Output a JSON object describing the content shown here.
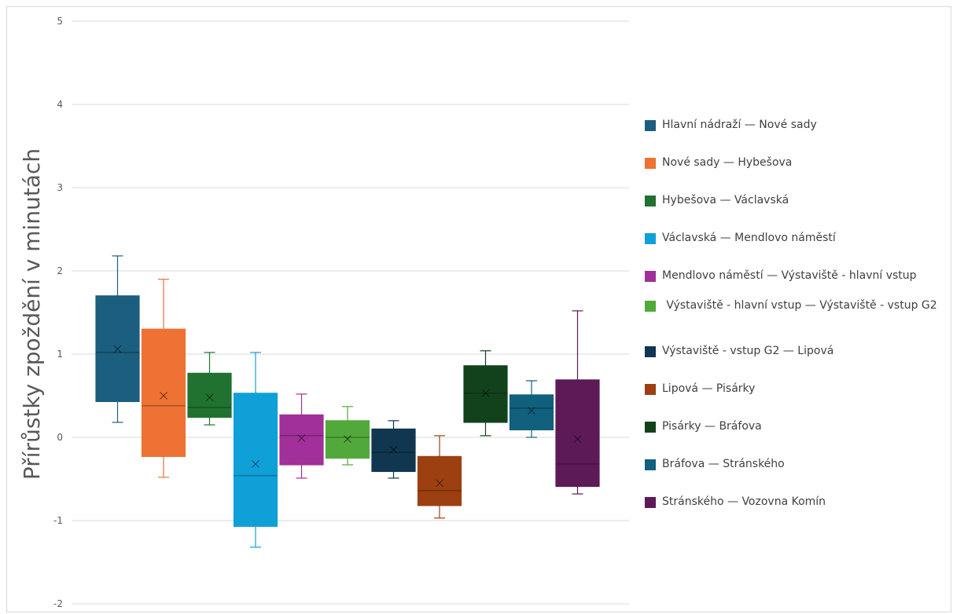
{
  "chart_data": {
    "type": "box",
    "title": "",
    "xlabel": "",
    "ylabel": "Přírůstky zpoždění v minutách",
    "ylim": [
      -2,
      5
    ],
    "yticks": [
      "-2",
      "-1",
      "0",
      "1",
      "2",
      "3",
      "4",
      "5"
    ],
    "grid": true,
    "legend_position": "right",
    "series": [
      {
        "name": "Hlavní nádraží — Nové sady",
        "color": "#1b5e80",
        "min": 0.18,
        "q1": 0.43,
        "median": 1.02,
        "q3": 1.7,
        "max": 2.18,
        "mean": 1.06
      },
      {
        "name": "Nové sady — Hybešova",
        "color": "#ed7233",
        "min": -0.48,
        "q1": -0.23,
        "median": 0.38,
        "q3": 1.3,
        "max": 1.9,
        "mean": 0.5
      },
      {
        "name": "Hybešova — Václavská",
        "color": "#217230",
        "min": 0.15,
        "q1": 0.24,
        "median": 0.36,
        "q3": 0.77,
        "max": 1.02,
        "mean": 0.48
      },
      {
        "name": "Václavská — Mendlovo náměstí",
        "color": "#10a0d8",
        "min": -1.32,
        "q1": -1.07,
        "median": -0.46,
        "q3": 0.53,
        "max": 1.02,
        "mean": -0.32
      },
      {
        "name": "Mendlovo náměstí — Výstaviště - hlavní vstup",
        "color": "#a1309a",
        "min": -0.49,
        "q1": -0.33,
        "median": 0.02,
        "q3": 0.27,
        "max": 0.52,
        "mean": -0.01
      },
      {
        "name": "Výstaviště - hlavní vstup — Výstaviště - vstup G2",
        "color": "#52a93b",
        "min": -0.33,
        "q1": -0.25,
        "median": 0.0,
        "q3": 0.2,
        "max": 0.37,
        "mean": -0.02
      },
      {
        "name": "Výstaviště - vstup G2 — Lipová",
        "color": "#103650",
        "min": -0.49,
        "q1": -0.41,
        "median": -0.18,
        "q3": 0.1,
        "max": 0.2,
        "mean": -0.15
      },
      {
        "name": "Lipová — Pisárky",
        "color": "#9c4012",
        "min": -0.97,
        "q1": -0.82,
        "median": -0.64,
        "q3": -0.23,
        "max": 0.02,
        "mean": -0.55
      },
      {
        "name": "Pisárky — Bráfova",
        "color": "#12421c",
        "min": 0.02,
        "q1": 0.18,
        "median": 0.53,
        "q3": 0.86,
        "max": 1.04,
        "mean": 0.53
      },
      {
        "name": "Bráfova — Stránského",
        "color": "#10607e",
        "min": 0.0,
        "q1": 0.09,
        "median": 0.35,
        "q3": 0.51,
        "max": 0.68,
        "mean": 0.32
      },
      {
        "name": "Stránského — Vozovna Komín",
        "color": "#5d1a57",
        "min": -0.68,
        "q1": -0.59,
        "median": -0.32,
        "q3": 0.69,
        "max": 1.52,
        "mean": -0.02
      }
    ]
  }
}
